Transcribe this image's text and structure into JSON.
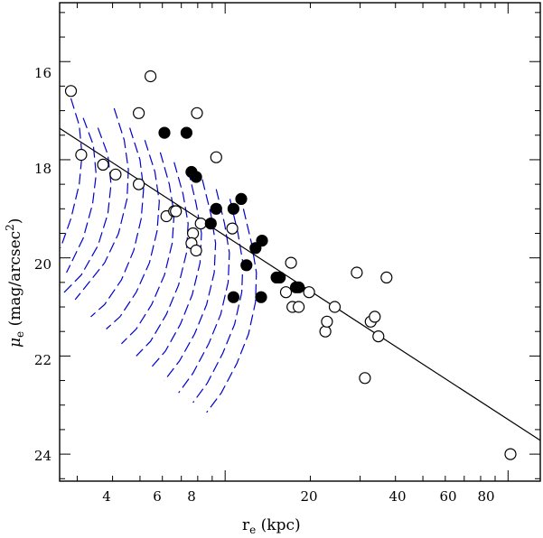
{
  "chart_data": {
    "type": "scatter",
    "title": "",
    "xlabel": {
      "base": "r",
      "sub": "e",
      "rest": " (kpc)"
    },
    "ylabel": {
      "mu": "μ",
      "sub": "e",
      "paren_open": " (mag/arcsec",
      "sup": "2",
      "paren_close": ")"
    },
    "x_scale": "log",
    "xlim": [
      2.6,
      130
    ],
    "ylim": [
      24.55,
      14.8
    ],
    "x_tick_labels": [
      "4",
      "6",
      "8",
      "20",
      "40",
      "60",
      "80"
    ],
    "y_tick_labels": [
      "16",
      "18",
      "20",
      "22",
      "24"
    ],
    "grid": false,
    "legend": "none",
    "colors": {
      "points": "#000000",
      "fit_line": "#000000",
      "curves": "#0000cc"
    },
    "series": [
      {
        "marker": "open-circle",
        "points": [
          [
            2.85,
            16.6
          ],
          [
            3.1,
            17.9
          ],
          [
            3.7,
            18.1
          ],
          [
            4.1,
            18.3
          ],
          [
            4.95,
            17.05
          ],
          [
            5.45,
            16.3
          ],
          [
            4.95,
            18.5
          ],
          [
            6.2,
            19.15
          ],
          [
            6.6,
            19.05
          ],
          [
            6.7,
            19.05
          ],
          [
            7.7,
            19.5
          ],
          [
            7.6,
            19.7
          ],
          [
            7.9,
            19.85
          ],
          [
            7.95,
            17.05
          ],
          [
            8.2,
            19.3
          ],
          [
            9.3,
            17.95
          ],
          [
            10.6,
            19.4
          ],
          [
            16.4,
            20.7
          ],
          [
            17.1,
            20.1
          ],
          [
            17.3,
            21.0
          ],
          [
            18.2,
            21.0
          ],
          [
            19.8,
            20.7
          ],
          [
            22.6,
            21.5
          ],
          [
            22.9,
            21.3
          ],
          [
            24.4,
            21.0
          ],
          [
            29.2,
            20.3
          ],
          [
            31.2,
            22.45
          ],
          [
            32.7,
            21.3
          ],
          [
            33.8,
            21.2
          ],
          [
            34.8,
            21.6
          ],
          [
            37.2,
            20.4
          ],
          [
            102,
            24.0
          ]
        ]
      },
      {
        "marker": "filled-circle",
        "points": [
          [
            6.1,
            17.45
          ],
          [
            7.3,
            17.45
          ],
          [
            7.6,
            18.25
          ],
          [
            7.9,
            18.35
          ],
          [
            8.9,
            19.3
          ],
          [
            9.3,
            19.0
          ],
          [
            10.7,
            19.0
          ],
          [
            11.4,
            18.8
          ],
          [
            11.9,
            20.15
          ],
          [
            12.8,
            19.8
          ],
          [
            13.5,
            19.65
          ],
          [
            15.2,
            20.4
          ],
          [
            15.6,
            20.4
          ],
          [
            17.8,
            20.6
          ],
          [
            18.2,
            20.6
          ],
          [
            13.4,
            20.8
          ],
          [
            10.7,
            20.8
          ]
        ]
      }
    ],
    "fit_line": {
      "from": [
        2.6,
        17.36
      ],
      "to": [
        130,
        23.72
      ]
    },
    "curves": [
      [
        [
          2.85,
          16.75
        ],
        [
          3.05,
          17.3
        ],
        [
          3.12,
          17.9
        ],
        [
          3.05,
          18.5
        ],
        [
          2.85,
          19.2
        ],
        [
          2.62,
          19.8
        ]
      ],
      [
        [
          3.15,
          17.15
        ],
        [
          3.42,
          17.7
        ],
        [
          3.5,
          18.3
        ],
        [
          3.4,
          18.9
        ],
        [
          3.15,
          19.6
        ],
        [
          2.75,
          20.3
        ]
      ],
      [
        [
          3.55,
          17.35
        ],
        [
          3.85,
          17.9
        ],
        [
          3.95,
          18.5
        ],
        [
          3.85,
          19.1
        ],
        [
          3.55,
          19.75
        ],
        [
          3.1,
          20.35
        ],
        [
          2.65,
          20.75
        ]
      ],
      [
        [
          4.05,
          16.95
        ],
        [
          4.4,
          17.6
        ],
        [
          4.55,
          18.2
        ],
        [
          4.5,
          18.8
        ],
        [
          4.2,
          19.5
        ],
        [
          3.75,
          20.1
        ],
        [
          3.2,
          20.6
        ],
        [
          2.95,
          20.85
        ]
      ],
      [
        [
          4.6,
          17.35
        ],
        [
          5.0,
          18.0
        ],
        [
          5.15,
          18.6
        ],
        [
          5.05,
          19.2
        ],
        [
          4.75,
          19.85
        ],
        [
          4.3,
          20.45
        ],
        [
          3.75,
          20.95
        ],
        [
          3.35,
          21.2
        ]
      ],
      [
        [
          5.2,
          17.6
        ],
        [
          5.65,
          18.25
        ],
        [
          5.85,
          18.85
        ],
        [
          5.75,
          19.45
        ],
        [
          5.4,
          20.1
        ],
        [
          4.85,
          20.7
        ],
        [
          4.25,
          21.2
        ],
        [
          3.8,
          21.45
        ]
      ],
      [
        [
          5.9,
          17.85
        ],
        [
          6.35,
          18.5
        ],
        [
          6.6,
          19.1
        ],
        [
          6.5,
          19.7
        ],
        [
          6.1,
          20.35
        ],
        [
          5.5,
          20.95
        ],
        [
          4.85,
          21.45
        ],
        [
          4.3,
          21.75
        ]
      ],
      [
        [
          6.6,
          18.05
        ],
        [
          7.1,
          18.7
        ],
        [
          7.4,
          19.3
        ],
        [
          7.3,
          19.9
        ],
        [
          6.85,
          20.55
        ],
        [
          6.2,
          21.15
        ],
        [
          5.45,
          21.7
        ],
        [
          4.85,
          22.0
        ]
      ],
      [
        [
          7.4,
          18.2
        ],
        [
          7.9,
          18.9
        ],
        [
          8.25,
          19.5
        ],
        [
          8.15,
          20.1
        ],
        [
          7.65,
          20.75
        ],
        [
          6.95,
          21.35
        ],
        [
          6.15,
          21.9
        ],
        [
          5.45,
          22.25
        ]
      ],
      [
        [
          8.3,
          18.4
        ],
        [
          8.9,
          19.1
        ],
        [
          9.25,
          19.7
        ],
        [
          9.15,
          20.3
        ],
        [
          8.6,
          20.95
        ],
        [
          7.8,
          21.55
        ],
        [
          6.9,
          22.1
        ],
        [
          6.1,
          22.5
        ]
      ],
      [
        [
          9.3,
          18.6
        ],
        [
          9.95,
          19.3
        ],
        [
          10.35,
          19.9
        ],
        [
          10.25,
          20.5
        ],
        [
          9.65,
          21.15
        ],
        [
          8.75,
          21.75
        ],
        [
          7.7,
          22.35
        ],
        [
          6.85,
          22.75
        ]
      ],
      [
        [
          10.4,
          18.8
        ],
        [
          11.1,
          19.5
        ],
        [
          11.55,
          20.1
        ],
        [
          11.45,
          20.7
        ],
        [
          10.8,
          21.35
        ],
        [
          9.8,
          21.95
        ],
        [
          8.65,
          22.55
        ],
        [
          7.7,
          22.95
        ]
      ],
      [
        [
          11.6,
          19.0
        ],
        [
          12.4,
          19.7
        ],
        [
          12.9,
          20.3
        ],
        [
          12.8,
          20.9
        ],
        [
          12.1,
          21.55
        ],
        [
          11.0,
          22.15
        ],
        [
          9.7,
          22.75
        ],
        [
          8.6,
          23.15
        ]
      ]
    ]
  }
}
